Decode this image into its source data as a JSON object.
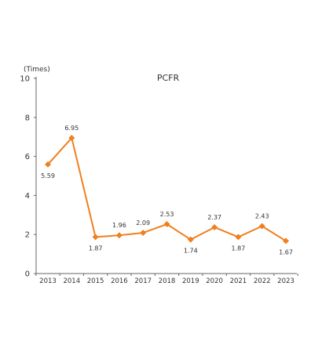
{
  "chart_data": {
    "type": "line",
    "title": "PCFR",
    "unit_label": "(Times)",
    "xlabel": "",
    "ylabel": "",
    "categories": [
      "2013",
      "2014",
      "2015",
      "2016",
      "2017",
      "2018",
      "2019",
      "2020",
      "2021",
      "2022",
      "2023"
    ],
    "series": [
      {
        "values": [
          5.59,
          6.95,
          1.87,
          1.96,
          2.09,
          2.53,
          1.74,
          2.37,
          1.87,
          2.43,
          1.67
        ],
        "color": "#F07F1E",
        "marker": "diamond"
      }
    ],
    "data_labels": [
      "5.59",
      "6.95",
      "1.87",
      "1.96",
      "2.09",
      "2.53",
      "1.74",
      "2.37",
      "1.87",
      "2.43",
      "1.67"
    ],
    "label_positions": [
      "below",
      "above",
      "below",
      "above",
      "above",
      "above",
      "below",
      "above",
      "below",
      "above",
      "below"
    ],
    "y_ticks": [
      0,
      2,
      4,
      6,
      8,
      10
    ],
    "y_tick_labels": [
      "0",
      "2",
      "4",
      "6",
      "8",
      "10"
    ],
    "ylim": [
      0,
      10
    ],
    "grid": false,
    "legend": "none"
  }
}
